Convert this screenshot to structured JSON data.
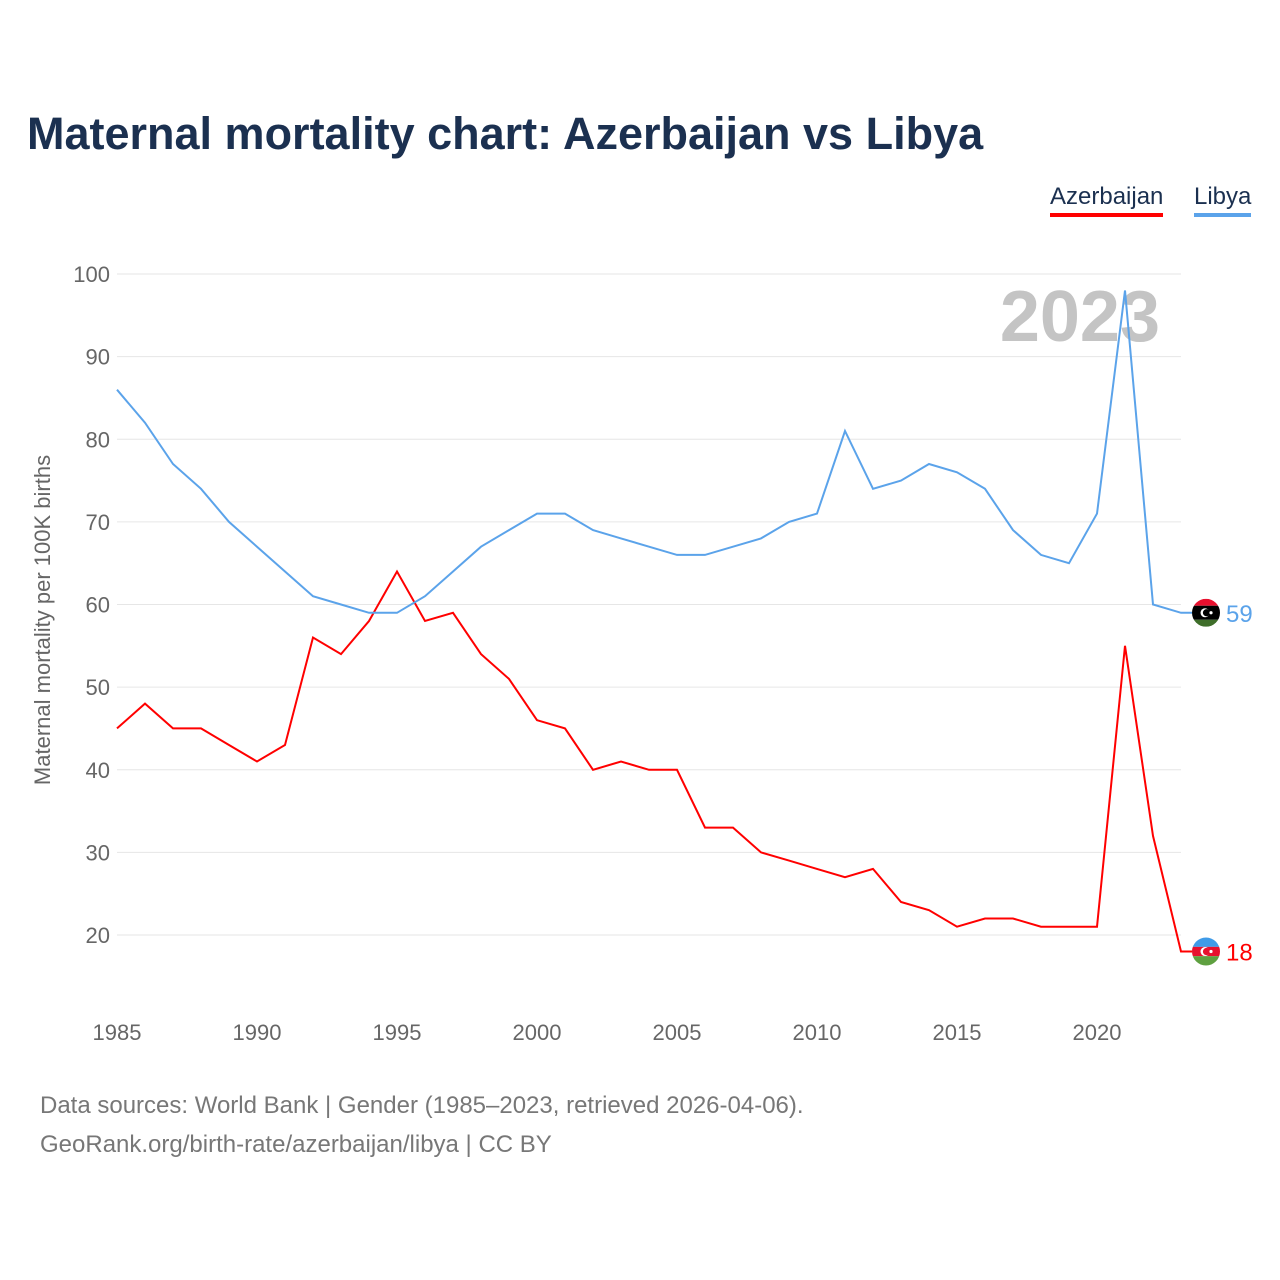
{
  "chart_data": {
    "type": "line",
    "title": "Maternal mortality chart: Azerbaijan vs Libya",
    "ylabel": "Maternal mortality per 100K births",
    "xlabel": "",
    "ylim": [
      20,
      100
    ],
    "xlim": [
      1985,
      2023
    ],
    "yticks": [
      20,
      30,
      40,
      50,
      60,
      70,
      80,
      90,
      100
    ],
    "xticks": [
      1985,
      1990,
      1995,
      2000,
      2005,
      2010,
      2015,
      2020
    ],
    "grid": true,
    "legend_placement": "top-right",
    "watermark_year": "2023",
    "x": [
      1985,
      1986,
      1987,
      1988,
      1989,
      1990,
      1991,
      1992,
      1993,
      1994,
      1995,
      1996,
      1997,
      1998,
      1999,
      2000,
      2001,
      2002,
      2003,
      2004,
      2005,
      2006,
      2007,
      2008,
      2009,
      2010,
      2011,
      2012,
      2013,
      2014,
      2015,
      2016,
      2017,
      2018,
      2019,
      2020,
      2021,
      2022,
      2023
    ],
    "series": [
      {
        "name": "Azerbaijan",
        "color": "#ff0000",
        "end_label": "18",
        "values": [
          45,
          48,
          45,
          45,
          43,
          41,
          43,
          56,
          54,
          58,
          64,
          58,
          59,
          54,
          51,
          46,
          45,
          40,
          41,
          40,
          40,
          33,
          33,
          30,
          29,
          28,
          27,
          28,
          24,
          23,
          21,
          22,
          22,
          21,
          21,
          21,
          55,
          32,
          18
        ]
      },
      {
        "name": "Libya",
        "color": "#5ba3ea",
        "end_label": "59",
        "values": [
          86,
          82,
          77,
          74,
          70,
          67,
          64,
          61,
          60,
          59,
          59,
          61,
          64,
          67,
          69,
          71,
          71,
          69,
          68,
          67,
          66,
          66,
          67,
          68,
          70,
          71,
          81,
          74,
          75,
          77,
          76,
          74,
          69,
          66,
          65,
          71,
          98,
          60,
          59
        ]
      }
    ]
  },
  "footer": {
    "line1": "Data sources: World Bank | Gender (1985–2023, retrieved 2026-04-06).",
    "line2": "GeoRank.org/birth-rate/azerbaijan/libya | CC BY"
  }
}
